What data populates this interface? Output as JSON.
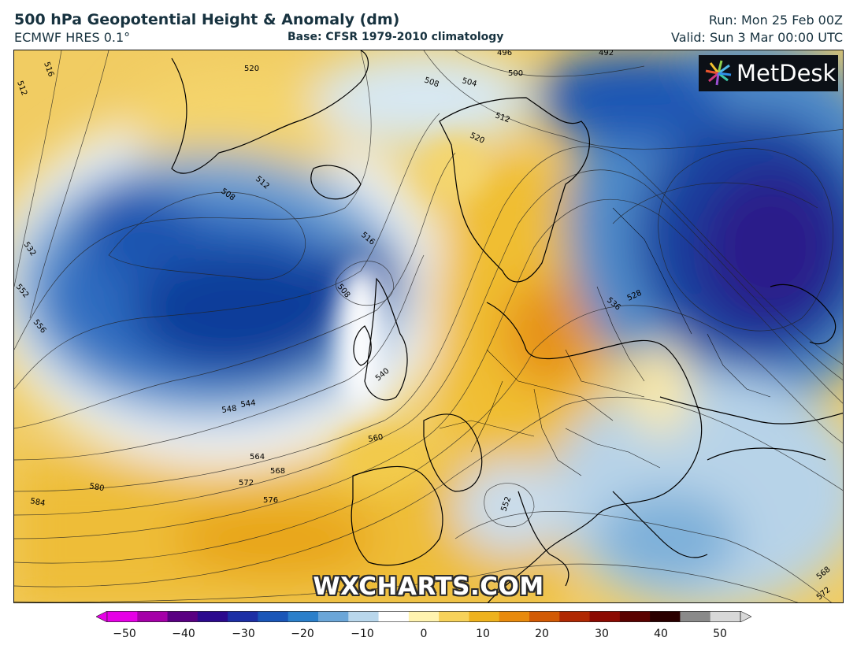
{
  "header": {
    "title": "500 hPa Geopotential Height & Anomaly (dm)",
    "model": "ECMWF HRES 0.1°",
    "base": "Base: CFSR 1979-2010 climatology",
    "run": "Run: Mon 25 Feb 00Z",
    "valid": "Valid: Sun 3 Mar 00:00 UTC"
  },
  "branding": {
    "logo_text": "MetDesk",
    "watermark": "WXCHARTS.COM"
  },
  "contour_labels": [
    "516",
    "512",
    "520",
    "508",
    "504",
    "500",
    "496",
    "492",
    "512",
    "520",
    "508",
    "512",
    "516",
    "508",
    "532",
    "552",
    "556",
    "540",
    "536",
    "528",
    "544",
    "548",
    "560",
    "564",
    "568",
    "572",
    "576",
    "580",
    "584",
    "552",
    "568",
    "572"
  ],
  "colorbar": {
    "ticks": [
      "−50",
      "−40",
      "−30",
      "−20",
      "−10",
      "0",
      "10",
      "20",
      "30",
      "40",
      "50"
    ],
    "colors": [
      "#e600e6",
      "#a500a8",
      "#5a0082",
      "#2c0a8e",
      "#1d2fa5",
      "#1a56b8",
      "#2b7fca",
      "#6ba6d8",
      "#b9d7ec",
      "#ffffff",
      "#fff3b0",
      "#f7d25a",
      "#eeb21e",
      "#e88a0c",
      "#d25a04",
      "#b02802",
      "#8c0a02",
      "#5a0200",
      "#2a0000",
      "#8a8a8a",
      "#d8d8d8"
    ],
    "range": [
      -50,
      50
    ]
  }
}
